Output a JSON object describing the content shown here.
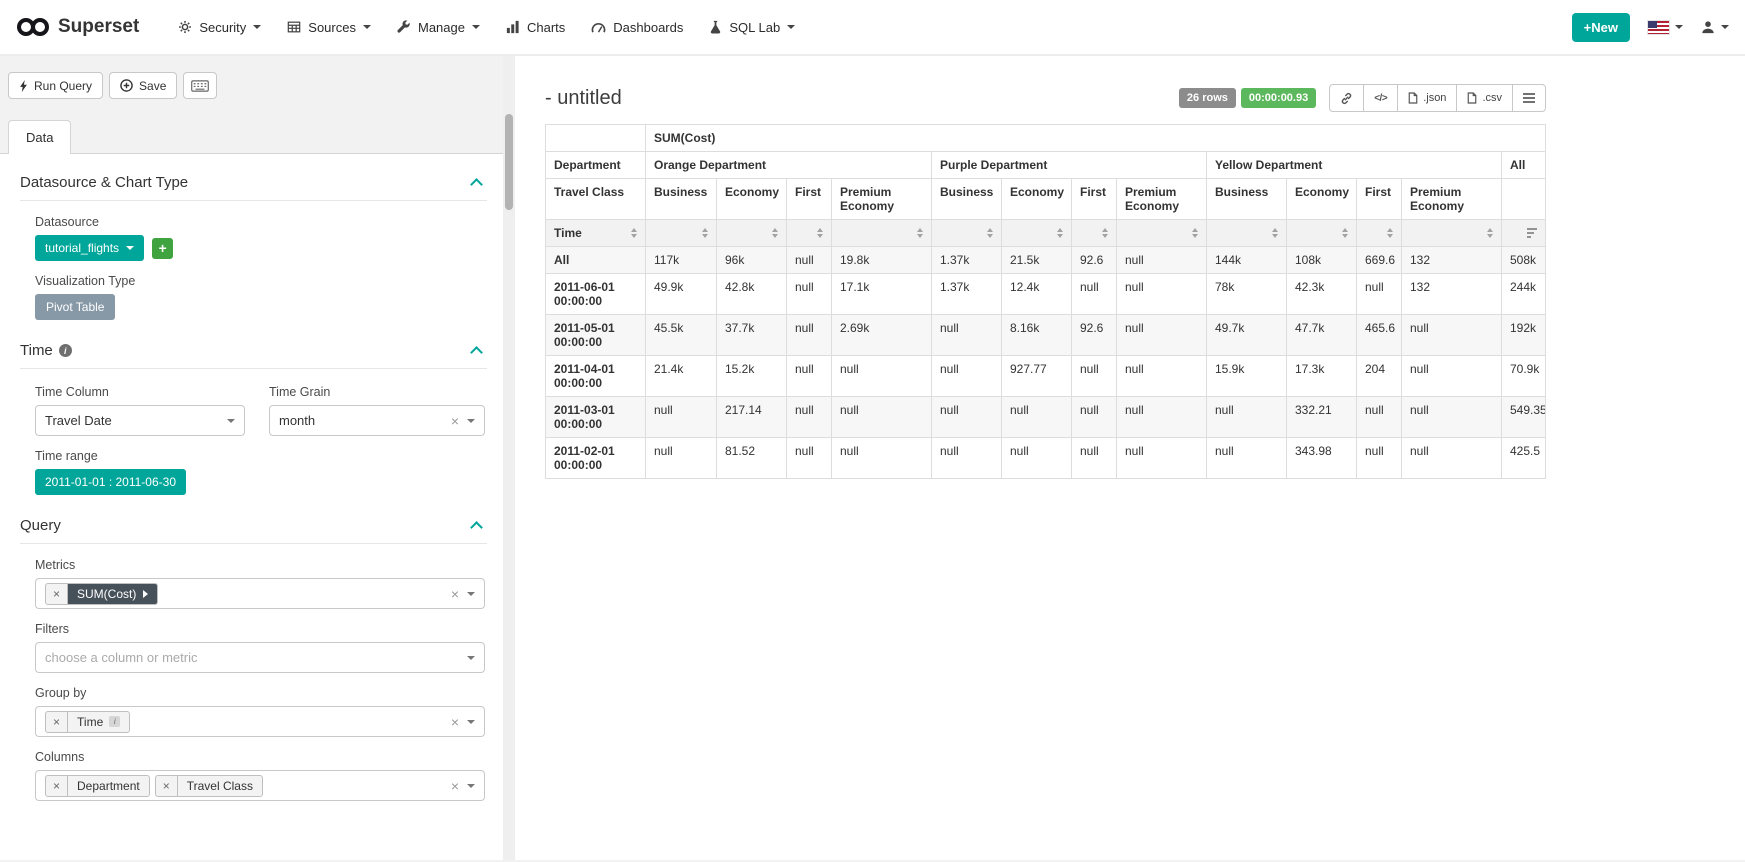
{
  "navbar": {
    "brand": "Superset",
    "items": [
      {
        "label": "Security",
        "icon": "gear-icon",
        "has_caret": true
      },
      {
        "label": "Sources",
        "icon": "table-icon",
        "has_caret": true
      },
      {
        "label": "Manage",
        "icon": "wrench-icon",
        "has_caret": true
      },
      {
        "label": "Charts",
        "icon": "bar-chart-icon",
        "has_caret": false
      },
      {
        "label": "Dashboards",
        "icon": "dashboard-icon",
        "has_caret": false
      },
      {
        "label": "SQL Lab",
        "icon": "flask-icon",
        "has_caret": true
      }
    ],
    "new_button_label": "+New"
  },
  "toolbar": {
    "run_query_label": "Run Query",
    "save_label": "Save"
  },
  "panel": {
    "tab_label": "Data",
    "datasource_section": {
      "title": "Datasource & Chart Type",
      "datasource_label": "Datasource",
      "datasource_value": "tutorial_flights",
      "visualization_type_label": "Visualization Type",
      "visualization_type_value": "Pivot Table"
    },
    "time_section": {
      "title": "Time",
      "time_column_label": "Time Column",
      "time_column_value": "Travel Date",
      "time_grain_label": "Time Grain",
      "time_grain_value": "month",
      "time_range_label": "Time range",
      "time_range_value": "2011-01-01 : 2011-06-30"
    },
    "query_section": {
      "title": "Query",
      "metrics_label": "Metrics",
      "metrics_chips": [
        "SUM(Cost)"
      ],
      "filters_label": "Filters",
      "filters_placeholder": "choose a column or metric",
      "group_by_label": "Group by",
      "group_by_chips": [
        "Time"
      ],
      "columns_label": "Columns",
      "columns_chips": [
        "Department",
        "Travel Class"
      ]
    }
  },
  "result_header": {
    "title": "- untitled",
    "row_count_badge": "26 rows",
    "query_duration_badge": "00:00:00.93",
    "buttons": [
      {
        "icon": "link-icon",
        "label": ""
      },
      {
        "icon": "code-icon",
        "label": "</>"
      },
      {
        "icon": "file-icon",
        "label": ".json"
      },
      {
        "icon": "file-icon",
        "label": ".csv"
      },
      {
        "icon": "menu-icon",
        "label": ""
      }
    ]
  },
  "colors": {
    "primary_teal": "#00a699",
    "success_green": "#5cb85c",
    "badge_gray": "#8c8c8c",
    "metric_chip_dark": "#47515a",
    "viz_type_label_bg": "#8799a7"
  },
  "chart_data": {
    "type": "table",
    "title": "- untitled",
    "metric": "SUM(Cost)",
    "row_dimension": "Time",
    "column_dimensions": [
      "Department",
      "Travel Class"
    ],
    "departments": [
      "Orange Department",
      "Purple Department",
      "Yellow Department"
    ],
    "travel_classes": [
      "Business",
      "Economy",
      "First",
      "Premium Economy"
    ],
    "all_column_label": "All",
    "rows": [
      {
        "time": "All",
        "values": [
          "117k",
          "96k",
          "null",
          "19.8k",
          "1.37k",
          "21.5k",
          "92.6",
          "null",
          "144k",
          "108k",
          "669.6",
          "132",
          "508k"
        ]
      },
      {
        "time": "2011-06-01 00:00:00",
        "values": [
          "49.9k",
          "42.8k",
          "null",
          "17.1k",
          "1.37k",
          "12.4k",
          "null",
          "null",
          "78k",
          "42.3k",
          "null",
          "132",
          "244k"
        ]
      },
      {
        "time": "2011-05-01 00:00:00",
        "values": [
          "45.5k",
          "37.7k",
          "null",
          "2.69k",
          "null",
          "8.16k",
          "92.6",
          "null",
          "49.7k",
          "47.7k",
          "465.6",
          "null",
          "192k"
        ]
      },
      {
        "time": "2011-04-01 00:00:00",
        "values": [
          "21.4k",
          "15.2k",
          "null",
          "null",
          "null",
          "927.77",
          "null",
          "null",
          "15.9k",
          "17.3k",
          "204",
          "null",
          "70.9k"
        ]
      },
      {
        "time": "2011-03-01 00:00:00",
        "values": [
          "null",
          "217.14",
          "null",
          "null",
          "null",
          "null",
          "null",
          "null",
          "null",
          "332.21",
          "null",
          "null",
          "549.35"
        ]
      },
      {
        "time": "2011-02-01 00:00:00",
        "values": [
          "null",
          "81.52",
          "null",
          "null",
          "null",
          "null",
          "null",
          "null",
          "null",
          "343.98",
          "null",
          "null",
          "425.5"
        ]
      }
    ]
  }
}
